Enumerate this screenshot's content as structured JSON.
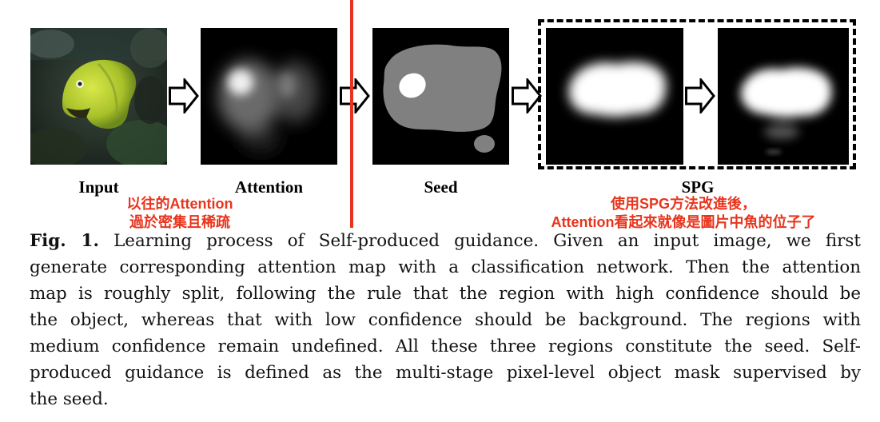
{
  "figure": {
    "labels": {
      "input": "Input",
      "attention": "Attention",
      "seed": "Seed",
      "spg": "SPG"
    },
    "notes": {
      "left": [
        "以往的Attention",
        "過於密集且稀疏"
      ],
      "right": [
        "使用SPG方法改進後，",
        "Attention看起來就像是圖片中魚的位子了"
      ]
    },
    "colors": {
      "annotation": "#e8341c",
      "seed_background": "#000000",
      "seed_medium": "#808080",
      "seed_high": "#ffffff"
    }
  },
  "caption": {
    "fig_label": "Fig. 1.",
    "lines": [
      "Learning process of Self-produced guidance. Given an input image, we first",
      "generate corresponding attention map with a classification network. Then the attention",
      "map is roughly split, following the rule that the region with high confidence should be",
      "the object, whereas that with low confidence should be background. The regions with",
      "medium confidence remain undefined. All these three regions constitute the seed. Self-",
      "produced guidance is defined as the multi-stage pixel-level object mask supervised by",
      "the seed."
    ]
  }
}
